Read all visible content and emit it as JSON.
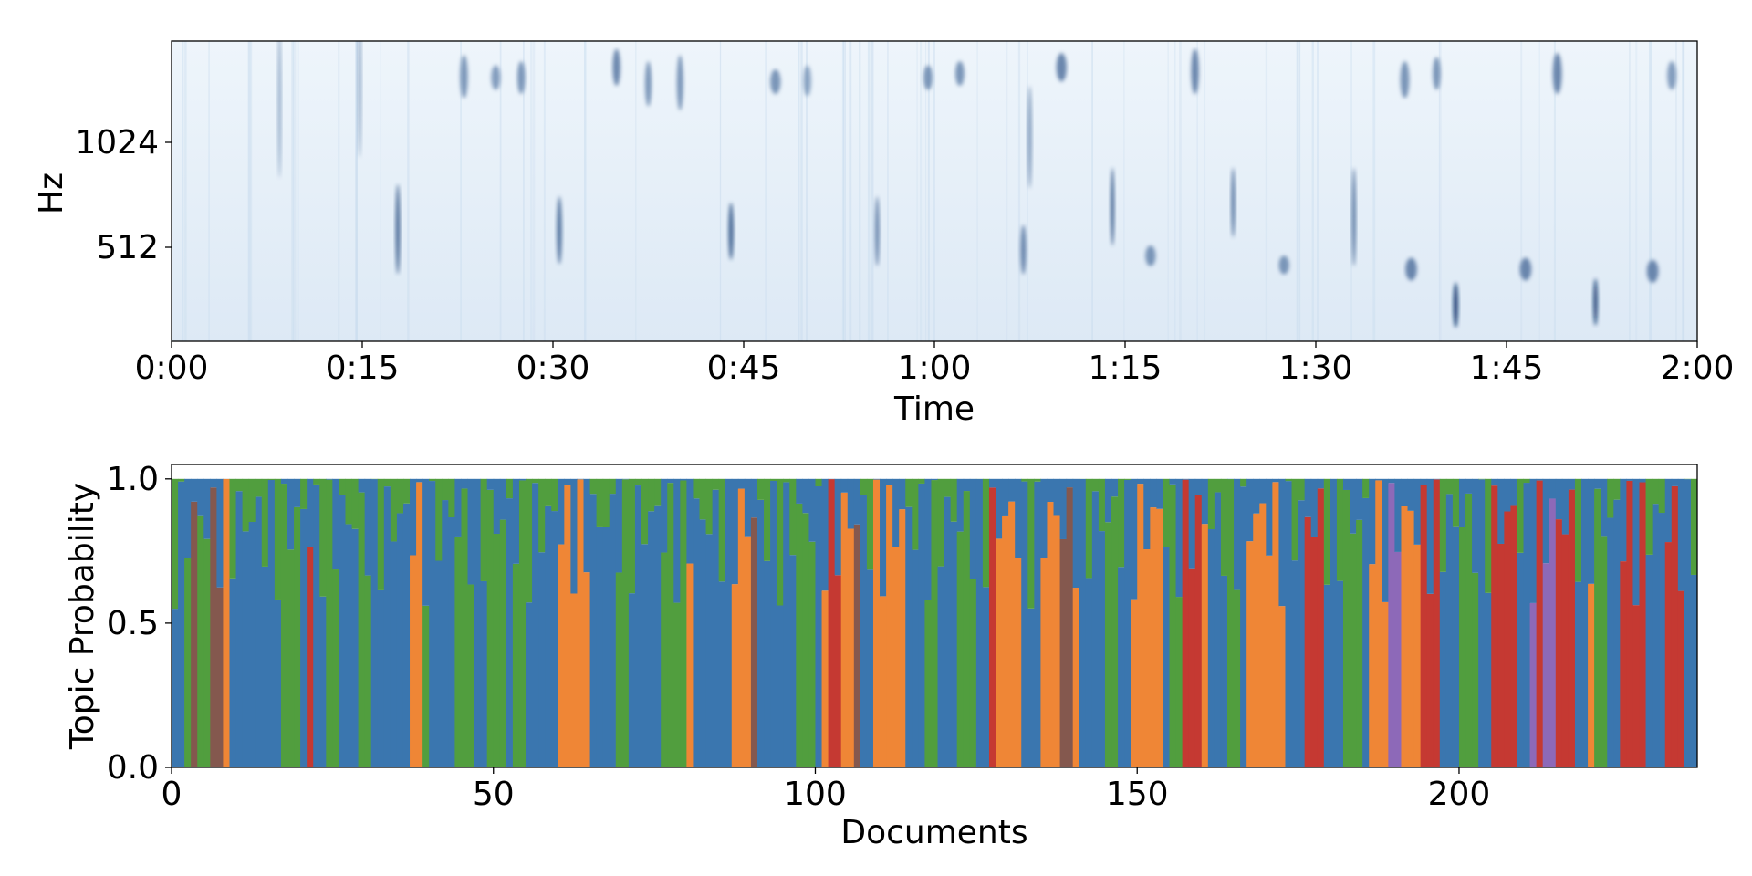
{
  "chart_data": [
    {
      "type": "heatmap",
      "title": "",
      "xlabel": "Time",
      "ylabel": "Hz",
      "x_ticks": [
        "0:00",
        "0:15",
        "0:30",
        "0:45",
        "1:00",
        "1:15",
        "1:30",
        "1:45",
        "2:00"
      ],
      "x_range_seconds": [
        0,
        120
      ],
      "y_ticks": [
        1024,
        512
      ],
      "colormap": "Blues",
      "colors": {
        "background": "#e8f2fa",
        "intensity_max": "#08306b"
      },
      "events": [
        {
          "t": 17.8,
          "f": [
            380,
            820
          ],
          "w": 0.35,
          "i": 0.8
        },
        {
          "t": 30.5,
          "f": [
            430,
            760
          ],
          "w": 0.4,
          "i": 0.7
        },
        {
          "t": 44.0,
          "f": [
            450,
            730
          ],
          "w": 0.4,
          "i": 0.8
        },
        {
          "t": 55.5,
          "f": [
            420,
            760
          ],
          "w": 0.35,
          "i": 0.6
        },
        {
          "t": 67.0,
          "f": [
            380,
            620
          ],
          "w": 0.45,
          "i": 0.6
        },
        {
          "t": 74.0,
          "f": [
            520,
            900
          ],
          "w": 0.3,
          "i": 0.8
        },
        {
          "t": 83.5,
          "f": [
            560,
            900
          ],
          "w": 0.3,
          "i": 0.7
        },
        {
          "t": 93.0,
          "f": [
            420,
            900
          ],
          "w": 0.3,
          "i": 0.7
        },
        {
          "t": 101.0,
          "f": [
            120,
            340
          ],
          "w": 0.4,
          "i": 1.0
        },
        {
          "t": 112.0,
          "f": [
            130,
            360
          ],
          "w": 0.35,
          "i": 1.0
        },
        {
          "t": 8.5,
          "f": [
            850,
            1600
          ],
          "w": 0.25,
          "i": 0.4
        },
        {
          "t": 14.8,
          "f": [
            950,
            1700
          ],
          "w": 0.25,
          "i": 0.4
        },
        {
          "t": 67.5,
          "f": [
            800,
            1300
          ],
          "w": 0.3,
          "i": 0.5
        },
        {
          "t": 23.0,
          "f": [
            1240,
            1450
          ],
          "w": 0.6,
          "i": 0.5
        },
        {
          "t": 25.5,
          "f": [
            1280,
            1400
          ],
          "w": 0.7,
          "i": 0.45
        },
        {
          "t": 27.5,
          "f": [
            1260,
            1420
          ],
          "w": 0.6,
          "i": 0.5
        },
        {
          "t": 35.0,
          "f": [
            1300,
            1480
          ],
          "w": 0.6,
          "i": 0.6
        },
        {
          "t": 37.5,
          "f": [
            1200,
            1420
          ],
          "w": 0.5,
          "i": 0.5
        },
        {
          "t": 40.0,
          "f": [
            1180,
            1450
          ],
          "w": 0.5,
          "i": 0.5
        },
        {
          "t": 47.5,
          "f": [
            1260,
            1380
          ],
          "w": 0.8,
          "i": 0.5
        },
        {
          "t": 50.0,
          "f": [
            1250,
            1400
          ],
          "w": 0.6,
          "i": 0.4
        },
        {
          "t": 59.5,
          "f": [
            1280,
            1400
          ],
          "w": 0.7,
          "i": 0.5
        },
        {
          "t": 62.0,
          "f": [
            1300,
            1420
          ],
          "w": 0.7,
          "i": 0.5
        },
        {
          "t": 70.0,
          "f": [
            1320,
            1460
          ],
          "w": 0.8,
          "i": 0.6
        },
        {
          "t": 80.5,
          "f": [
            1260,
            1480
          ],
          "w": 0.6,
          "i": 0.6
        },
        {
          "t": 97.0,
          "f": [
            1240,
            1420
          ],
          "w": 0.7,
          "i": 0.5
        },
        {
          "t": 99.5,
          "f": [
            1280,
            1440
          ],
          "w": 0.6,
          "i": 0.5
        },
        {
          "t": 109.0,
          "f": [
            1260,
            1460
          ],
          "w": 0.7,
          "i": 0.6
        },
        {
          "t": 118.0,
          "f": [
            1280,
            1420
          ],
          "w": 0.7,
          "i": 0.45
        },
        {
          "t": 77.0,
          "f": [
            420,
            520
          ],
          "w": 0.8,
          "i": 0.5
        },
        {
          "t": 87.5,
          "f": [
            380,
            470
          ],
          "w": 0.8,
          "i": 0.5
        },
        {
          "t": 97.5,
          "f": [
            350,
            460
          ],
          "w": 0.9,
          "i": 0.6
        },
        {
          "t": 106.5,
          "f": [
            350,
            460
          ],
          "w": 0.9,
          "i": 0.6
        },
        {
          "t": 116.5,
          "f": [
            340,
            450
          ],
          "w": 0.9,
          "i": 0.6
        }
      ]
    },
    {
      "type": "area",
      "title": "",
      "xlabel": "Documents",
      "ylabel": "Topic Probability",
      "xlim": [
        0,
        237
      ],
      "ylim": [
        0,
        1.05
      ],
      "x_ticks": [
        0,
        50,
        100,
        150,
        200
      ],
      "y_ticks": [
        0.0,
        0.5,
        1.0
      ],
      "stacked": true,
      "series_colors": [
        "#3a76af",
        "#ef8636",
        "#519e3e",
        "#c53932",
        "#8d69b8",
        "#84584e"
      ],
      "dominant_topic": [
        0,
        0,
        2,
        5,
        2,
        2,
        5,
        5,
        1,
        0,
        0,
        0,
        0,
        0,
        0,
        0,
        0,
        2,
        2,
        2,
        0,
        3,
        0,
        0,
        2,
        2,
        0,
        0,
        0,
        2,
        2,
        0,
        0,
        0,
        0,
        0,
        0,
        1,
        1,
        2,
        0,
        0,
        0,
        0,
        2,
        2,
        2,
        0,
        0,
        2,
        2,
        2,
        0,
        2,
        2,
        0,
        0,
        0,
        0,
        0,
        1,
        1,
        1,
        1,
        1,
        0,
        0,
        0,
        0,
        2,
        2,
        0,
        0,
        0,
        0,
        0,
        2,
        2,
        2,
        2,
        1,
        0,
        0,
        0,
        0,
        0,
        0,
        1,
        1,
        1,
        5,
        0,
        0,
        0,
        0,
        0,
        0,
        2,
        2,
        2,
        0,
        1,
        3,
        3,
        1,
        1,
        5,
        0,
        0,
        1,
        1,
        1,
        1,
        1,
        0,
        0,
        0,
        2,
        2,
        0,
        0,
        0,
        2,
        2,
        2,
        0,
        0,
        3,
        1,
        1,
        1,
        1,
        0,
        0,
        0,
        1,
        1,
        1,
        5,
        5,
        1,
        0,
        0,
        0,
        0,
        2,
        2,
        0,
        0,
        1,
        1,
        1,
        1,
        1,
        0,
        2,
        2,
        3,
        3,
        3,
        1,
        0,
        0,
        0,
        2,
        2,
        0,
        1,
        1,
        1,
        1,
        1,
        1,
        0,
        0,
        0,
        3,
        3,
        3,
        0,
        0,
        0,
        2,
        2,
        2,
        0,
        1,
        1,
        1,
        4,
        4,
        1,
        1,
        1,
        3,
        3,
        3,
        0,
        0,
        0,
        2,
        2,
        2,
        0,
        0,
        3,
        3,
        3,
        3,
        0,
        0,
        4,
        3,
        4,
        4,
        3,
        3,
        3,
        0,
        0,
        1,
        2,
        2,
        0,
        0,
        3,
        3,
        3,
        3,
        0,
        0,
        0,
        3,
        3,
        3,
        0,
        0,
        2,
        2,
        0,
        0
      ]
    }
  ]
}
